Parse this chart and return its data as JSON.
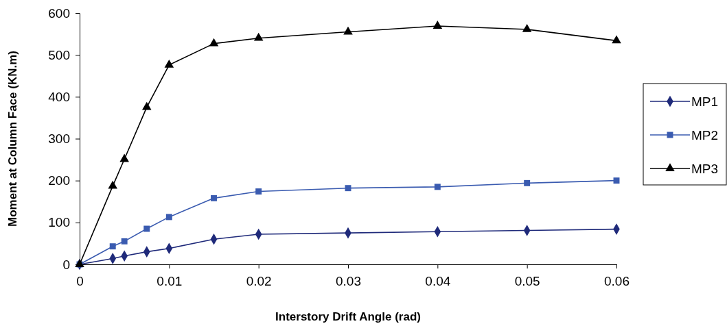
{
  "chart_data": {
    "type": "line",
    "xlabel": "Interstory Drift Angle (rad)",
    "ylabel": "Moment at Column Face (KN.m)",
    "xlim": [
      0,
      0.06
    ],
    "xticks": [
      0,
      0.01,
      0.02,
      0.03,
      0.04,
      0.05,
      0.06
    ],
    "ylim": [
      0,
      600
    ],
    "yticks": [
      0,
      100,
      200,
      300,
      400,
      500,
      600
    ],
    "x": [
      0,
      0.0037,
      0.005,
      0.0075,
      0.01,
      0.015,
      0.02,
      0.03,
      0.04,
      0.05,
      0.06
    ],
    "legend": "right",
    "grid": false,
    "line_style": "solid",
    "series": [
      {
        "name": "MP1",
        "color": "#1f2a7a",
        "marker": "diamond",
        "values": [
          0,
          14,
          20,
          30,
          38,
          60,
          72,
          75,
          78,
          81,
          84
        ]
      },
      {
        "name": "MP2",
        "color": "#3a5bb0",
        "marker": "square",
        "values": [
          0,
          43,
          55,
          85,
          113,
          158,
          174,
          182,
          185,
          194,
          200
        ]
      },
      {
        "name": "MP3",
        "color": "#000000",
        "marker": "triangle",
        "values": [
          0,
          187,
          251,
          375,
          476,
          527,
          540,
          555,
          569,
          561,
          534
        ]
      }
    ]
  }
}
